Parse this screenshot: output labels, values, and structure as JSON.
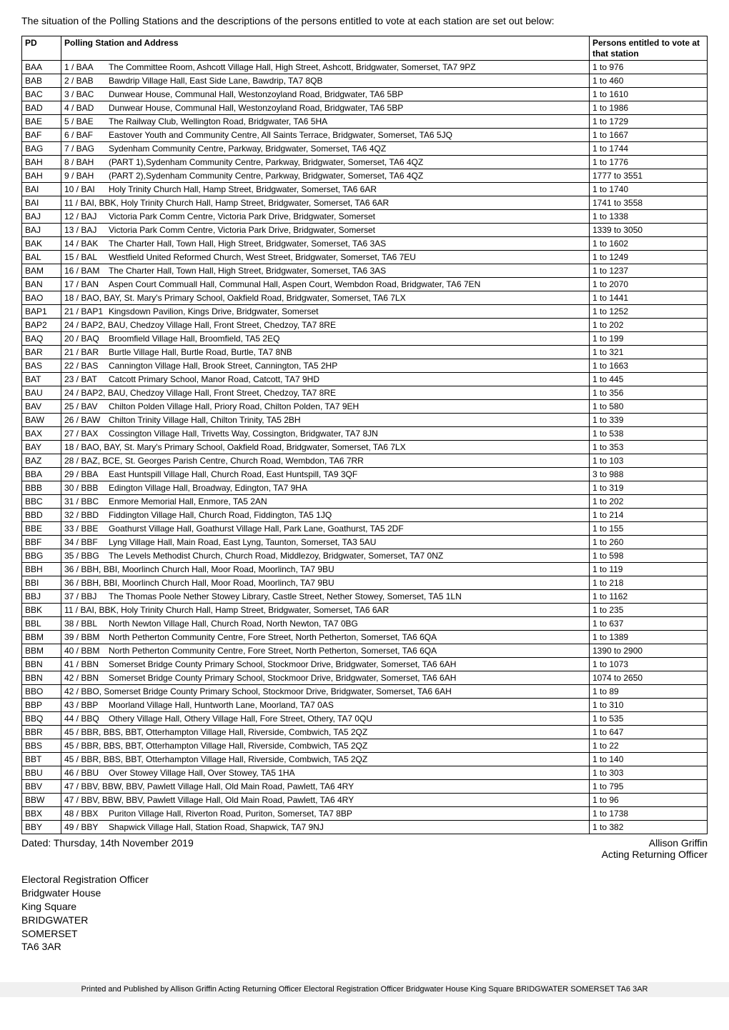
{
  "intro": "The situation of the Polling Stations and the descriptions of the persons entitled to vote at each station are set out below:",
  "columns": {
    "pd": "PD",
    "address": "Polling Station and Address",
    "persons": "Persons entitled to vote at that station"
  },
  "rows": [
    {
      "pd": "BAA",
      "code": "1 / BAA",
      "addr": "The Committee Room, Ashcott Village Hall, High Street, Ashcott, Bridgwater, Somerset, TA7 9PZ",
      "persons": "1 to 976"
    },
    {
      "pd": "BAB",
      "code": "2 / BAB",
      "addr": "Bawdrip Village Hall, East Side Lane, Bawdrip, TA7 8QB",
      "persons": "1 to 460"
    },
    {
      "pd": "BAC",
      "code": "3 / BAC",
      "addr": "Dunwear House, Communal Hall, Westonzoyland Road, Bridgwater, TA6 5BP",
      "persons": "1 to 1610"
    },
    {
      "pd": "BAD",
      "code": "4 / BAD",
      "addr": "Dunwear House, Communal Hall, Westonzoyland Road, Bridgwater, TA6 5BP",
      "persons": "1 to 1986"
    },
    {
      "pd": "BAE",
      "code": "5 / BAE",
      "addr": "The Railway Club, Wellington Road, Bridgwater, TA6 5HA",
      "persons": "1 to 1729"
    },
    {
      "pd": "BAF",
      "code": "6 / BAF",
      "addr": "Eastover Youth and Community Centre, All Saints Terrace, Bridgwater, Somerset, TA6 5JQ",
      "persons": "1 to 1667"
    },
    {
      "pd": "BAG",
      "code": "7 / BAG",
      "addr": "Sydenham Community Centre, Parkway, Bridgwater, Somerset, TA6 4QZ",
      "persons": "1 to 1744"
    },
    {
      "pd": "BAH",
      "code": "8 / BAH",
      "addr": "(PART 1),Sydenham Community Centre, Parkway, Bridgwater, Somerset, TA6 4QZ",
      "persons": "1 to 1776"
    },
    {
      "pd": "BAH",
      "code": "9 / BAH",
      "addr": "(PART 2),Sydenham Community Centre, Parkway, Bridgwater, Somerset, TA6 4QZ",
      "persons": "1777 to 3551"
    },
    {
      "pd": "BAI",
      "code": "10 / BAI",
      "addr": "Holy Trinity Church Hall, Hamp Street, Bridgwater, Somerset, TA6 6AR",
      "persons": "1 to 1740"
    },
    {
      "pd": "BAI",
      "code": "11 / BAI, BBK,",
      "addr": "Holy Trinity Church Hall, Hamp Street, Bridgwater, Somerset, TA6 6AR",
      "persons": "1741 to 3558",
      "nocode": true
    },
    {
      "pd": "BAJ",
      "code": "12 / BAJ",
      "addr": "Victoria Park Comm Centre, Victoria Park Drive, Bridgwater, Somerset",
      "persons": "1 to 1338"
    },
    {
      "pd": "BAJ",
      "code": "13 / BAJ",
      "addr": "Victoria Park Comm Centre, Victoria Park Drive, Bridgwater, Somerset",
      "persons": "1339 to 3050"
    },
    {
      "pd": "BAK",
      "code": "14 / BAK",
      "addr": "The Charter Hall, Town Hall, High Street, Bridgwater, Somerset, TA6 3AS",
      "persons": "1 to 1602"
    },
    {
      "pd": "BAL",
      "code": "15 / BAL",
      "addr": "Westfield United Reformed Church, West Street, Bridgwater, Somerset, TA6 7EU",
      "persons": "1 to 1249"
    },
    {
      "pd": "BAM",
      "code": "16 / BAM",
      "addr": "The Charter Hall, Town Hall, High Street, Bridgwater, Somerset, TA6 3AS",
      "persons": "1 to 1237"
    },
    {
      "pd": "BAN",
      "code": "17 / BAN",
      "addr": "Aspen Court Commuall Hall, Communal Hall, Aspen Court, Wembdon Road, Bridgwater, TA6 7EN",
      "persons": "1 to 2070"
    },
    {
      "pd": "BAO",
      "code": "18 / BAO, BAY,",
      "addr": "St. Mary's Primary School, Oakfield Road, Bridgwater, Somerset, TA6 7LX",
      "persons": "1 to 1441",
      "nocode": true
    },
    {
      "pd": "BAP1",
      "code": "21 / BAP1",
      "addr": "Kingsdown Pavilion, Kings Drive, Bridgwater, Somerset",
      "persons": "1 to 1252"
    },
    {
      "pd": "BAP2",
      "code": "24 / BAP2, BAU,",
      "addr": "Chedzoy Village Hall, Front Street, Chedzoy, TA7 8RE",
      "persons": "1 to 202",
      "nocode": true
    },
    {
      "pd": "BAQ",
      "code": "20 / BAQ",
      "addr": "Broomfield Village Hall, Broomfield, TA5 2EQ",
      "persons": "1 to 199"
    },
    {
      "pd": "BAR",
      "code": "21 / BAR",
      "addr": "Burtle Village Hall, Burtle Road, Burtle, TA7 8NB",
      "persons": "1 to 321"
    },
    {
      "pd": "BAS",
      "code": "22 / BAS",
      "addr": "Cannington Village Hall, Brook Street, Cannington, TA5 2HP",
      "persons": "1 to 1663"
    },
    {
      "pd": "BAT",
      "code": "23 / BAT",
      "addr": "Catcott Primary School, Manor Road, Catcott, TA7 9HD",
      "persons": "1 to 445"
    },
    {
      "pd": "BAU",
      "code": "24 / BAP2, BAU,",
      "addr": "Chedzoy Village Hall, Front Street, Chedzoy, TA7 8RE",
      "persons": "1 to 356",
      "nocode": true
    },
    {
      "pd": "BAV",
      "code": "25 / BAV",
      "addr": "Chilton Polden Village Hall, Priory Road, Chilton Polden, TA7 9EH",
      "persons": "1 to 580"
    },
    {
      "pd": "BAW",
      "code": "26 / BAW",
      "addr": "Chilton Trinity Village Hall, Chilton Trinity, TA5 2BH",
      "persons": "1 to 339"
    },
    {
      "pd": "BAX",
      "code": "27 / BAX",
      "addr": "Cossington Village Hall, Trivetts Way, Cossington, Bridgwater, TA7 8JN",
      "persons": "1 to 538"
    },
    {
      "pd": "BAY",
      "code": "18 / BAO, BAY,",
      "addr": "St. Mary's Primary School, Oakfield Road, Bridgwater, Somerset, TA6 7LX",
      "persons": "1 to 353",
      "nocode": true
    },
    {
      "pd": "BAZ",
      "code": "28 / BAZ, BCE,",
      "addr": "St. Georges Parish Centre, Church Road, Wembdon, TA6 7RR",
      "persons": "1 to 103",
      "nocode": true
    },
    {
      "pd": "BBA",
      "code": "29 / BBA",
      "addr": "East Huntspill Village Hall, Church Road, East Huntspill, TA9 3QF",
      "persons": "3 to 988"
    },
    {
      "pd": "BBB",
      "code": "30 / BBB",
      "addr": "Edington Village Hall, Broadway, Edington, TA7 9HA",
      "persons": "1 to 319"
    },
    {
      "pd": "BBC",
      "code": "31 / BBC",
      "addr": "Enmore Memorial Hall, Enmore, TA5 2AN",
      "persons": "1 to 202"
    },
    {
      "pd": "BBD",
      "code": "32 / BBD",
      "addr": "Fiddington Village Hall, Church Road, Fiddington, TA5 1JQ",
      "persons": "1 to 214"
    },
    {
      "pd": "BBE",
      "code": "33 / BBE",
      "addr": "Goathurst Village Hall, Goathurst Village Hall, Park Lane, Goathurst, TA5 2DF",
      "persons": "1 to 155"
    },
    {
      "pd": "BBF",
      "code": "34 / BBF",
      "addr": "Lyng Village Hall, Main Road, East Lyng, Taunton, Somerset, TA3 5AU",
      "persons": "1 to 260"
    },
    {
      "pd": "BBG",
      "code": "35 / BBG",
      "addr": "The Levels Methodist Church, Church Road, Middlezoy, Bridgwater, Somerset, TA7 0NZ",
      "persons": "1 to 598"
    },
    {
      "pd": "BBH",
      "code": "36 / BBH, BBI,",
      "addr": "Moorlinch Church Hall, Moor Road, Moorlinch, TA7 9BU",
      "persons": "1 to 119",
      "nocode": true
    },
    {
      "pd": "BBI",
      "code": "36 / BBH, BBI,",
      "addr": "Moorlinch Church Hall, Moor Road, Moorlinch, TA7 9BU",
      "persons": "1 to 218",
      "nocode": true
    },
    {
      "pd": "BBJ",
      "code": "37 / BBJ",
      "addr": "The Thomas Poole Nether Stowey Library, Castle Street, Nether Stowey, Somerset, TA5 1LN",
      "persons": "1 to 1162"
    },
    {
      "pd": "BBK",
      "code": "11 / BAI, BBK,",
      "addr": "Holy Trinity Church Hall, Hamp Street, Bridgwater, Somerset, TA6 6AR",
      "persons": "1 to 235",
      "nocode": true
    },
    {
      "pd": "BBL",
      "code": "38 / BBL",
      "addr": "North Newton Village Hall, Church Road, North Newton, TA7 0BG",
      "persons": "1 to 637"
    },
    {
      "pd": "BBM",
      "code": "39 / BBM",
      "addr": "North Petherton Community Centre, Fore Street, North Petherton, Somerset, TA6 6QA",
      "persons": "1 to 1389"
    },
    {
      "pd": "BBM",
      "code": "40 / BBM",
      "addr": "North Petherton Community Centre, Fore Street, North Petherton, Somerset, TA6 6QA",
      "persons": "1390 to 2900"
    },
    {
      "pd": "BBN",
      "code": "41 / BBN",
      "addr": "Somerset Bridge County Primary School, Stockmoor Drive, Bridgwater, Somerset, TA6 6AH",
      "persons": "1 to 1073"
    },
    {
      "pd": "BBN",
      "code": "42 / BBN",
      "addr": "Somerset Bridge County Primary School, Stockmoor Drive, Bridgwater, Somerset, TA6 6AH",
      "persons": "1074 to 2650"
    },
    {
      "pd": "BBO",
      "code": "42 / BBO,",
      "addr": "Somerset Bridge County Primary School, Stockmoor Drive, Bridgwater, Somerset, TA6 6AH",
      "persons": "1 to 89",
      "nocode": true
    },
    {
      "pd": "BBP",
      "code": "43 / BBP",
      "addr": "Moorland Village Hall, Huntworth Lane, Moorland, TA7 0AS",
      "persons": "1 to 310"
    },
    {
      "pd": "BBQ",
      "code": "44 / BBQ",
      "addr": "Othery Village Hall, Othery Village Hall, Fore Street, Othery, TA7 0QU",
      "persons": "1 to 535"
    },
    {
      "pd": "BBR",
      "code": "45 / BBR, BBS, BBT,",
      "addr": "Otterhampton Village Hall, Riverside, Combwich, TA5 2QZ",
      "persons": "1 to 647",
      "nocode": true
    },
    {
      "pd": "BBS",
      "code": "45 / BBR, BBS, BBT,",
      "addr": "Otterhampton Village Hall, Riverside, Combwich, TA5 2QZ",
      "persons": "1 to 22",
      "nocode": true
    },
    {
      "pd": "BBT",
      "code": "45 / BBR, BBS, BBT,",
      "addr": "Otterhampton Village Hall, Riverside, Combwich, TA5 2QZ",
      "persons": "1 to 140",
      "nocode": true
    },
    {
      "pd": "BBU",
      "code": "46 / BBU",
      "addr": "Over Stowey Village Hall, Over Stowey, TA5 1HA",
      "persons": "1 to 303"
    },
    {
      "pd": "BBV",
      "code": "47 / BBV, BBW, BBV,",
      "addr": "Pawlett Village Hall, Old Main Road, Pawlett, TA6 4RY",
      "persons": "1 to 795",
      "nocode": true
    },
    {
      "pd": "BBW",
      "code": "47 / BBV, BBW, BBV,",
      "addr": "Pawlett Village Hall, Old Main Road, Pawlett, TA6 4RY",
      "persons": "1 to 96",
      "nocode": true
    },
    {
      "pd": "BBX",
      "code": "48 / BBX",
      "addr": "Puriton Village Hall, Riverton Road, Puriton, Somerset, TA7 8BP",
      "persons": "1 to 1738"
    },
    {
      "pd": "BBY",
      "code": "49 / BBY",
      "addr": "Shapwick Village Hall, Station Road, Shapwick, TA7 9NJ",
      "persons": "1 to 382"
    }
  ],
  "dated": "Dated: Thursday, 14th November 2019",
  "signatory_name": "Allison Griffin",
  "signatory_title": "Acting Returning Officer",
  "officer_lines": [
    "Electoral Registration Officer",
    "Bridgwater House",
    "King Square",
    "BRIDGWATER",
    "SOMERSET",
    "TA6 3AR"
  ],
  "footer": "Printed and Published by Allison Griffin Acting Returning Officer Electoral Registration Officer Bridgwater House King Square BRIDGWATER SOMERSET TA6 3AR"
}
